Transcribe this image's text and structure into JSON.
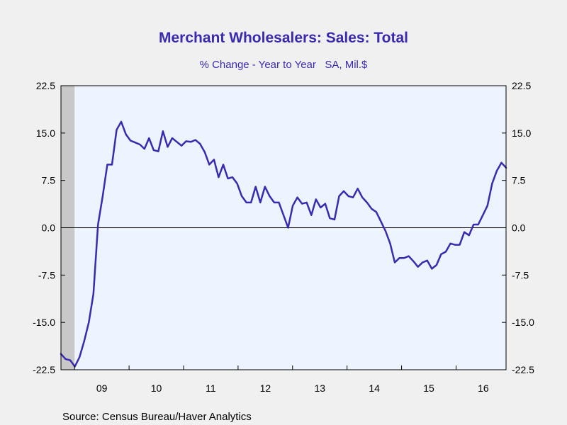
{
  "chart_data": {
    "type": "line",
    "title": "Merchant Wholesalers: Sales: Total",
    "subtitle": "% Change - Year to Year   SA, Mil.$",
    "source": "Source:  Census Bureau/Haver Analytics",
    "xlabel": "",
    "ylabel": "",
    "xlim": [
      2008.75,
      2016.917
    ],
    "ylim": [
      -22.5,
      22.5
    ],
    "y_ticks": [
      22.5,
      15.0,
      7.5,
      0.0,
      -7.5,
      -15.0,
      -22.5
    ],
    "y_tick_labels": [
      "22.5",
      "15.0",
      "7.5",
      "0.0",
      "-7.5",
      "-15.0",
      "-22.5"
    ],
    "x_tick_labels": [
      {
        "label": "09",
        "at": 2009.0
      },
      {
        "label": "10",
        "at": 2010.0
      },
      {
        "label": "11",
        "at": 2011.0
      },
      {
        "label": "12",
        "at": 2012.0
      },
      {
        "label": "13",
        "at": 2013.0
      },
      {
        "label": "14",
        "at": 2014.0
      },
      {
        "label": "15",
        "at": 2015.0
      },
      {
        "label": "16",
        "at": 2016.0
      }
    ],
    "recession": {
      "start": 2008.75,
      "end": 2009.0
    },
    "zero_line": true,
    "grid": false,
    "colors": {
      "line": "#3a2ab0",
      "plot_bg": "#eef4ff",
      "page_bg": "#f0f0f0",
      "recession": "#c8c8c8",
      "title": "#3a2ab0"
    },
    "series": [
      {
        "values": [
          -20.0,
          -20.8,
          -21.0,
          -22.0,
          -20.5,
          -18.0,
          -15.0,
          -10.5,
          0.5,
          5.0,
          10.0,
          10.0,
          15.5,
          16.8,
          14.8,
          13.8,
          13.5,
          13.2,
          12.5,
          14.2,
          12.3,
          12.1,
          15.3,
          12.8,
          14.2,
          13.6,
          13.0,
          13.7,
          13.6,
          13.9,
          13.3,
          12.0,
          10.0,
          10.8,
          8.0,
          10.0,
          7.8,
          8.0,
          7.0,
          5.0,
          4.0,
          4.0,
          6.5,
          4.0,
          6.5,
          5.0,
          4.0,
          4.0,
          2.0,
          0.0,
          3.5,
          4.8,
          3.8,
          4.0,
          2.0,
          4.5,
          3.2,
          3.8,
          1.5,
          1.3,
          5.0,
          5.8,
          5.0,
          4.8,
          6.2,
          4.8,
          4.0,
          3.0,
          2.5,
          1.0,
          -0.5,
          -2.5,
          -5.5,
          -4.8,
          -4.8,
          -4.5,
          -5.3,
          -6.2,
          -5.5,
          -5.2,
          -6.5,
          -5.9,
          -4.2,
          -3.8,
          -2.5,
          -2.7,
          -2.7,
          -0.7,
          -1.2,
          0.5,
          0.5,
          2.0,
          3.5,
          7.0,
          9.0,
          10.3,
          9.5
        ]
      }
    ]
  }
}
